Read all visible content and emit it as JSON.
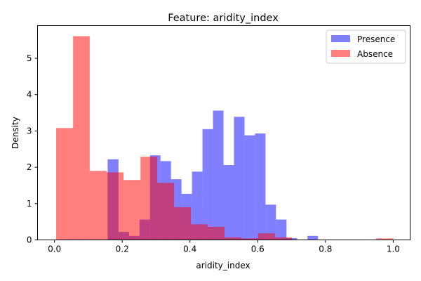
{
  "chart_data": {
    "type": "bar",
    "title": "Feature: aridity_index",
    "xlabel": "aridity_index",
    "ylabel": "Density",
    "xlim": [
      -0.05,
      1.05
    ],
    "ylim": [
      0,
      5.9
    ],
    "xticks": [
      0.0,
      0.2,
      0.4,
      0.6,
      0.8,
      1.0
    ],
    "xtick_labels": [
      "0.0",
      "0.2",
      "0.4",
      "0.6",
      "0.8",
      "1.0"
    ],
    "yticks": [
      0,
      1,
      2,
      3,
      4,
      5
    ],
    "ytick_labels": [
      "0",
      "1",
      "2",
      "3",
      "4",
      "5"
    ],
    "grid": false,
    "legend": "top-right",
    "series": [
      {
        "name": "Presence",
        "color": "#0000ff",
        "alpha": 0.5,
        "bins": [
          {
            "x0": 0.157,
            "x1": 0.189,
            "value": 2.22
          },
          {
            "x0": 0.189,
            "x1": 0.22,
            "value": 0.22
          },
          {
            "x0": 0.22,
            "x1": 0.251,
            "value": 0.11
          },
          {
            "x0": 0.251,
            "x1": 0.282,
            "value": 0.56
          },
          {
            "x0": 0.282,
            "x1": 0.313,
            "value": 2.33
          },
          {
            "x0": 0.313,
            "x1": 0.344,
            "value": 2.17
          },
          {
            "x0": 0.344,
            "x1": 0.375,
            "value": 1.67
          },
          {
            "x0": 0.375,
            "x1": 0.406,
            "value": 1.27
          },
          {
            "x0": 0.406,
            "x1": 0.437,
            "value": 1.88
          },
          {
            "x0": 0.437,
            "x1": 0.468,
            "value": 3.05
          },
          {
            "x0": 0.468,
            "x1": 0.499,
            "value": 3.56
          },
          {
            "x0": 0.499,
            "x1": 0.53,
            "value": 2.06
          },
          {
            "x0": 0.53,
            "x1": 0.561,
            "value": 3.39
          },
          {
            "x0": 0.561,
            "x1": 0.592,
            "value": 2.88
          },
          {
            "x0": 0.592,
            "x1": 0.623,
            "value": 2.93
          },
          {
            "x0": 0.623,
            "x1": 0.654,
            "value": 0.97
          },
          {
            "x0": 0.654,
            "x1": 0.685,
            "value": 0.56
          },
          {
            "x0": 0.685,
            "x1": 0.716,
            "value": 0.05
          },
          {
            "x0": 0.747,
            "x1": 0.778,
            "value": 0.11
          }
        ]
      },
      {
        "name": "Absence",
        "color": "#ff0000",
        "alpha": 0.5,
        "bins": [
          {
            "x0": 0.005,
            "x1": 0.055,
            "value": 3.08
          },
          {
            "x0": 0.055,
            "x1": 0.104,
            "value": 5.61
          },
          {
            "x0": 0.104,
            "x1": 0.154,
            "value": 1.9
          },
          {
            "x0": 0.154,
            "x1": 0.204,
            "value": 1.86
          },
          {
            "x0": 0.204,
            "x1": 0.254,
            "value": 1.65
          },
          {
            "x0": 0.254,
            "x1": 0.303,
            "value": 2.29
          },
          {
            "x0": 0.303,
            "x1": 0.353,
            "value": 1.57
          },
          {
            "x0": 0.353,
            "x1": 0.403,
            "value": 0.9
          },
          {
            "x0": 0.403,
            "x1": 0.452,
            "value": 0.43
          },
          {
            "x0": 0.452,
            "x1": 0.502,
            "value": 0.36
          },
          {
            "x0": 0.502,
            "x1": 0.552,
            "value": 0.07
          },
          {
            "x0": 0.552,
            "x1": 0.601,
            "value": 0.04
          },
          {
            "x0": 0.601,
            "x1": 0.651,
            "value": 0.18
          },
          {
            "x0": 0.651,
            "x1": 0.701,
            "value": 0.07
          },
          {
            "x0": 0.95,
            "x1": 1.0,
            "value": 0.04
          }
        ]
      }
    ]
  }
}
